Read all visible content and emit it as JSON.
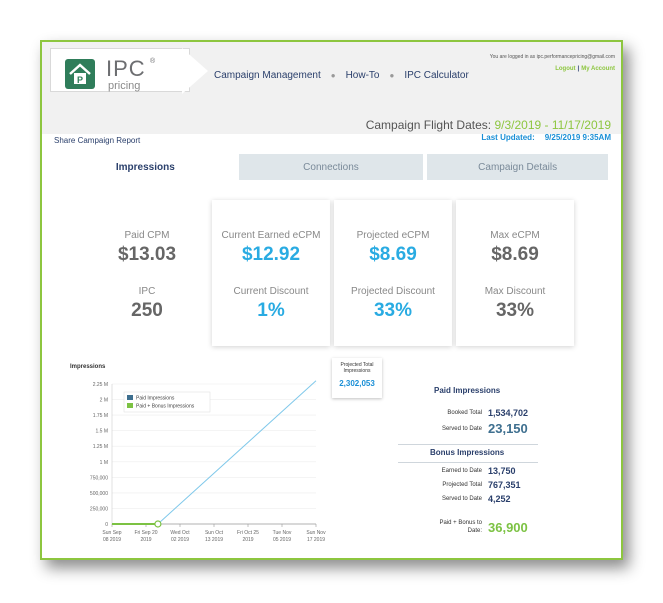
{
  "brand": {
    "logo_letter": "P",
    "logo_text": "IPC",
    "logo_reg": "®",
    "logo_sub": "pricing"
  },
  "nav": {
    "items": [
      "Campaign Management",
      "How-To",
      "IPC Calculator"
    ]
  },
  "account": {
    "user_line": "You are logged in as ipc.performancepricing@gmail.com",
    "logout": "Logout",
    "my_account": "My Account"
  },
  "campaign": {
    "flight_label": "Campaign Flight Dates:",
    "flight_value": "9/3/2019 - 11/17/2019",
    "updated_label": "Last Updated:",
    "updated_value": "9/25/2019 9:35AM",
    "share": "Share Campaign Report"
  },
  "tabs": [
    "Impressions",
    "Connections",
    "Campaign Details"
  ],
  "kpis": {
    "paid_cpm_label": "Paid CPM",
    "paid_cpm": "$13.03",
    "ipc_label": "IPC",
    "ipc": "250",
    "earned_ecpm_label": "Current Earned eCPM",
    "earned_ecpm": "$12.92",
    "current_discount_label": "Current Discount",
    "current_discount": "1%",
    "projected_ecpm_label": "Projected eCPM",
    "projected_ecpm": "$8.69",
    "projected_discount_label": "Projected Discount",
    "projected_discount": "33%",
    "max_ecpm_label": "Max eCPM",
    "max_ecpm": "$8.69",
    "max_discount_label": "Max Discount",
    "max_discount": "33%"
  },
  "projected_total": {
    "label": "Projected Total Impressions",
    "value": "2,302,053"
  },
  "chart_data": {
    "type": "line",
    "title": "Impressions",
    "ylim": [
      0,
      2250000
    ],
    "y_ticks": [
      "2.25 M",
      "2 M",
      "1.75 M",
      "1.5 M",
      "1.25 M",
      "1 M",
      "750,000",
      "500,000",
      "250,000",
      "0"
    ],
    "x_ticks": [
      [
        "Sun Sep",
        "08 2019"
      ],
      [
        "Fri Sep 20",
        "2019"
      ],
      [
        "Wed Oct",
        "02 2019"
      ],
      [
        "Sun Oct",
        "13 2019"
      ],
      [
        "Fri Oct 25",
        "2019"
      ],
      [
        "Tue Nov",
        "05 2019"
      ],
      [
        "Sun Nov",
        "17 2019"
      ]
    ],
    "series": [
      {
        "name": "Paid Impressions",
        "color": "#3e6f8f",
        "points": [
          [
            0,
            0
          ],
          [
            1.25,
            0
          ]
        ]
      },
      {
        "name": "Paid + Bonus Impressions",
        "color": "#7cc243",
        "points": [
          [
            0,
            0
          ],
          [
            1.25,
            0
          ]
        ]
      }
    ],
    "projection": {
      "color": "#7fc8ea",
      "points": [
        [
          1.35,
          0
        ],
        [
          6,
          2302053
        ]
      ]
    },
    "marker": {
      "x": 1.35,
      "y": 0
    }
  },
  "paid_impressions": {
    "title": "Paid Impressions",
    "booked_label": "Booked Total",
    "booked_value": "1,534,702",
    "served_label": "Served to Date",
    "served_value": "23,150"
  },
  "bonus_impressions": {
    "title": "Bonus Impressions",
    "earned_label": "Earned to Date",
    "earned_value": "13,750",
    "projected_label": "Projected Total",
    "projected_value": "767,351",
    "served_label": "Served to Date",
    "served_value": "4,252"
  },
  "paid_bonus": {
    "label_line1": "Paid + Bonus to",
    "label_line2": "Date:",
    "value": "36,900"
  }
}
